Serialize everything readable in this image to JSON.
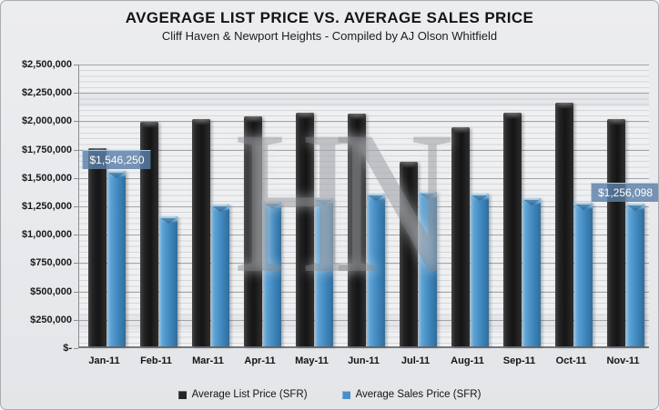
{
  "title": "AVGERAGE LIST PRICE VS. AVERAGE SALES PRICE",
  "subtitle": "Cliff Haven & Newport Heights - Compiled by AJ Olson Whitfield",
  "watermark": "HN",
  "colors": {
    "list_bar": "#1f1f1f",
    "sales_bar": "#4c8fc3",
    "data_label_bg": "#5c7fa7",
    "data_label_text": "#ffffff",
    "background": "#e9ebee",
    "plot_background": "#eff0f2"
  },
  "chart_data": {
    "type": "bar",
    "title": "AVGERAGE LIST PRICE VS. AVERAGE SALES PRICE",
    "subtitle": "Cliff Haven & Newport Heights - Compiled by AJ Olson Whitfield",
    "categories": [
      "Jan-11",
      "Feb-11",
      "Mar-11",
      "Apr-11",
      "May-11",
      "Jun-11",
      "Jul-11",
      "Aug-11",
      "Sep-11",
      "Oct-11",
      "Nov-11"
    ],
    "series": [
      {
        "name": "Average List Price (SFR)",
        "color": "#1f1f1f",
        "values": [
          1750000,
          1980000,
          2000000,
          2025000,
          2060000,
          2050000,
          1630000,
          1935000,
          2060000,
          2150000,
          2000000
        ]
      },
      {
        "name": "Average Sales Price (SFR)",
        "color": "#4c8fc3",
        "values": [
          1546250,
          1145000,
          1250000,
          1275000,
          1305000,
          1350000,
          1365000,
          1350000,
          1310000,
          1270000,
          1256098
        ]
      }
    ],
    "data_labels": [
      {
        "category": "Jan-11",
        "series": "Average Sales Price (SFR)",
        "value": 1546250,
        "text": "$1,546,250"
      },
      {
        "category": "Nov-11",
        "series": "Average Sales Price (SFR)",
        "value": 1256098,
        "text": "$1,256,098"
      }
    ],
    "y_axis": {
      "min": 0,
      "max": 2500000,
      "major_step": 250000,
      "minor_step": 50000,
      "ticks": [
        "$2,500,000",
        "$2,250,000",
        "$2,000,000",
        "$1,750,000",
        "$1,500,000",
        "$1,250,000",
        "$1,000,000",
        "$750,000",
        "$500,000",
        "$250,000",
        "$-"
      ]
    },
    "xlabel": "",
    "ylabel": "",
    "grid": true,
    "legend_position": "bottom"
  }
}
